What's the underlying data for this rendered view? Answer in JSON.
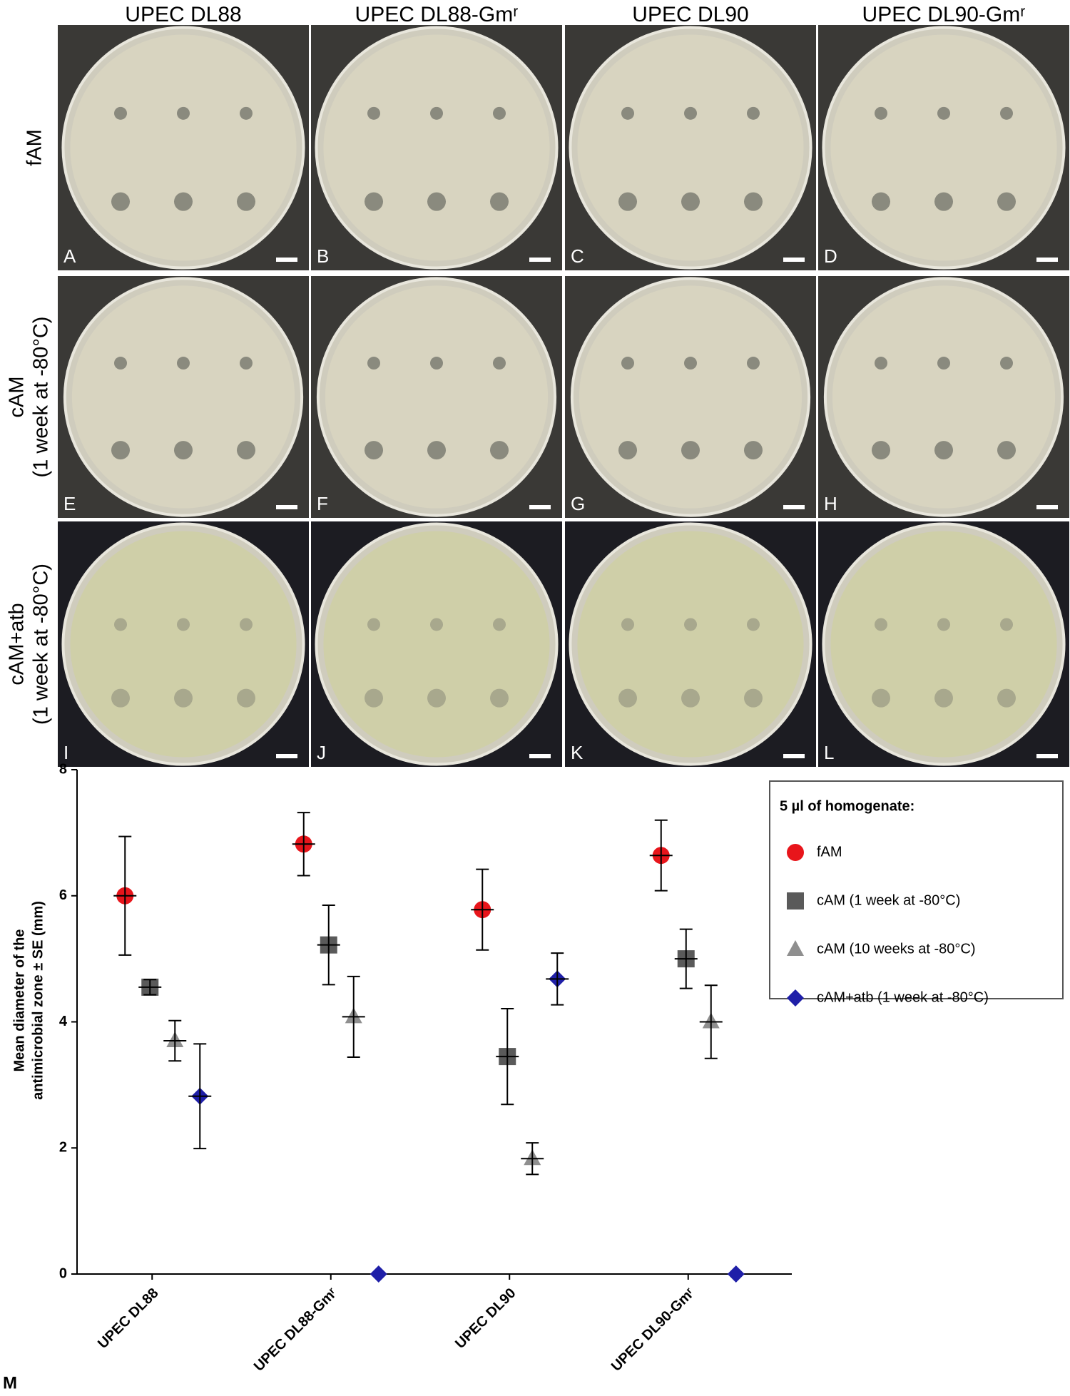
{
  "photo_panels": {
    "columns": [
      "UPEC DL88",
      "UPEC DL88-Gmʳ",
      "UPEC DL90",
      "UPEC DL90-Gmʳ"
    ],
    "rows": [
      [
        "fAM"
      ],
      [
        "cAM",
        "(1 week at -80°C)"
      ],
      [
        "cAM+atb",
        "(1 week at -80°C)"
      ]
    ],
    "letters": [
      "A",
      "B",
      "C",
      "D",
      "E",
      "F",
      "G",
      "H",
      "I",
      "J",
      "K",
      "L"
    ]
  },
  "chart_data": {
    "type": "errorbar",
    "panel_letter": "M",
    "y_label_lines": [
      "Mean diameter of the",
      "antimicrobial zone ± SE (mm)"
    ],
    "categories": [
      "UPEC DL88",
      "UPEC DL88-Gmʳ",
      "UPEC DL90",
      "UPEC DL90-Gmʳ"
    ],
    "series": [
      {
        "name": "fAM",
        "color": "#e8151b",
        "marker": "circle",
        "values": [
          6.0,
          6.82,
          5.78,
          6.64
        ],
        "errors": [
          0.94,
          0.5,
          0.64,
          0.56
        ]
      },
      {
        "name": "cAM (1 week at -80°C)",
        "color": "#5a5a5a",
        "marker": "square",
        "values": [
          4.55,
          5.22,
          3.45,
          5.0
        ],
        "errors": [
          0.12,
          0.63,
          0.76,
          0.47
        ]
      },
      {
        "name": "cAM (10 weeks at -80°C)",
        "color": "#8f8f8f",
        "marker": "triangle",
        "values": [
          3.7,
          4.08,
          1.83,
          4.0
        ],
        "errors": [
          0.32,
          0.64,
          0.25,
          0.58
        ]
      },
      {
        "name": "cAM+atb (1 week at -80°C)",
        "color": "#1f1fa8",
        "marker": "diamond",
        "values": [
          2.82,
          0,
          4.68,
          0
        ],
        "errors": [
          0.83,
          null,
          0.41,
          null
        ]
      }
    ],
    "legend_title": "5 µl of homogenate:",
    "legend": "upper right",
    "ylim": [
      0,
      8
    ],
    "yticks": [
      0,
      2,
      4,
      6,
      8
    ]
  }
}
